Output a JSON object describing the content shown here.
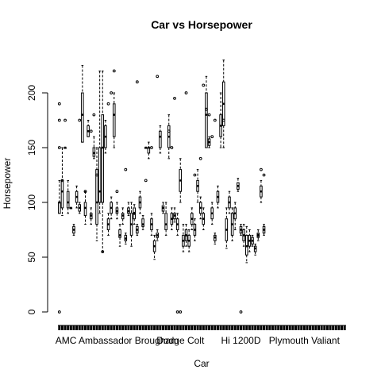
{
  "chart_data": {
    "type": "boxplot",
    "title": "Car vs Horsepower",
    "xlabel": "Car",
    "ylabel": "Horsepower",
    "ylim": [
      -10,
      240
    ],
    "y_ticks": [
      0,
      50,
      100,
      150,
      200
    ],
    "x_tick_labels": [
      "AMC Ambassador Brougham",
      "Dodge Colt",
      "Hi 1200D",
      "Plymouth Valiant"
    ],
    "x_tick_label_positions": [
      21,
      43,
      64,
      86
    ],
    "n_categories": 100,
    "colors": {
      "ink": "#000000",
      "background": "#ffffff"
    },
    "grid": false,
    "boxes": [
      {
        "i": 1,
        "v": [
          90,
          90,
          100,
          100,
          120
        ]
      },
      {
        "i": 2,
        "v": [
          88,
          95,
          110,
          120,
          150
        ]
      },
      {
        "i": 3,
        "v": [
          150,
          150,
          150,
          150,
          150
        ]
      },
      {
        "i": 4,
        "v": [
          90,
          95,
          100,
          110,
          120
        ]
      },
      {
        "i": 5,
        "v": [
          95,
          95,
          95,
          95,
          95
        ]
      },
      {
        "i": 6,
        "v": [
          70,
          72,
          75,
          78,
          80
        ]
      },
      {
        "i": 7,
        "v": [
          95,
          100,
          105,
          110,
          115
        ]
      },
      {
        "i": 8,
        "v": [
          90,
          92,
          95,
          98,
          100
        ]
      },
      {
        "i": 9,
        "v": [
          155,
          155,
          180,
          200,
          225
        ]
      },
      {
        "i": 10,
        "v": [
          80,
          88,
          95,
          100,
          110
        ]
      },
      {
        "i": 11,
        "v": [
          160,
          160,
          165,
          170,
          175
        ]
      },
      {
        "i": 12,
        "v": [
          80,
          85,
          88,
          90,
          95
        ]
      },
      {
        "i": 13,
        "v": [
          140,
          142,
          145,
          150,
          160
        ]
      },
      {
        "i": 14,
        "v": [
          65,
          80,
          100,
          130,
          150
        ]
      },
      {
        "i": 15,
        "v": [
          90,
          100,
          110,
          150,
          220
        ]
      },
      {
        "i": 16,
        "v": [
          55,
          100,
          150,
          180,
          220
        ]
      },
      {
        "i": 17,
        "v": [
          145,
          150,
          160,
          170,
          175
        ]
      },
      {
        "i": 18,
        "v": [
          70,
          75,
          80,
          85,
          90
        ]
      },
      {
        "i": 19,
        "v": [
          85,
          90,
          95,
          100,
          105
        ]
      },
      {
        "i": 20,
        "v": [
          150,
          160,
          180,
          190,
          200
        ]
      },
      {
        "i": 21,
        "v": [
          85,
          90,
          92,
          95,
          100
        ]
      },
      {
        "i": 22,
        "v": [
          60,
          68,
          70,
          75,
          80
        ]
      },
      {
        "i": 23,
        "v": [
          80,
          85,
          88,
          90,
          95
        ]
      },
      {
        "i": 24,
        "v": [
          62,
          65,
          67,
          70,
          72
        ]
      },
      {
        "i": 25,
        "v": [
          88,
          90,
          92,
          95,
          100
        ]
      },
      {
        "i": 26,
        "v": [
          60,
          70,
          80,
          90,
          100
        ]
      },
      {
        "i": 27,
        "v": [
          80,
          85,
          90,
          95,
          98
        ]
      },
      {
        "i": 28,
        "v": [
          70,
          72,
          75,
          78,
          80
        ]
      },
      {
        "i": 29,
        "v": [
          90,
          95,
          100,
          105,
          110
        ]
      },
      {
        "i": 30,
        "v": [
          75,
          78,
          80,
          85,
          88
        ]
      },
      {
        "i": 31,
        "v": [
          150,
          150,
          150,
          150,
          150
        ]
      },
      {
        "i": 32,
        "v": [
          140,
          145,
          150,
          150,
          155
        ]
      },
      {
        "i": 33,
        "v": [
          70,
          75,
          80,
          85,
          90
        ]
      },
      {
        "i": 34,
        "v": [
          48,
          55,
          60,
          65,
          70
        ]
      },
      {
        "i": 35,
        "v": [
          65,
          68,
          70,
          72,
          75
        ]
      },
      {
        "i": 36,
        "v": [
          145,
          150,
          160,
          165,
          170
        ]
      },
      {
        "i": 37,
        "v": [
          90,
          92,
          95,
          97,
          100
        ]
      },
      {
        "i": 38,
        "v": [
          70,
          75,
          80,
          90,
          100
        ]
      },
      {
        "i": 39,
        "v": [
          140,
          150,
          160,
          170,
          180
        ]
      },
      {
        "i": 40,
        "v": [
          75,
          80,
          85,
          90,
          95
        ]
      },
      {
        "i": 41,
        "v": [
          82,
          85,
          88,
          90,
          95
        ]
      },
      {
        "i": 42,
        "v": [
          70,
          75,
          80,
          85,
          90
        ]
      },
      {
        "i": 43,
        "v": [
          100,
          110,
          120,
          130,
          140
        ]
      },
      {
        "i": 44,
        "v": [
          55,
          60,
          65,
          70,
          80
        ]
      },
      {
        "i": 45,
        "v": [
          60,
          65,
          70,
          75,
          80
        ]
      },
      {
        "i": 46,
        "v": [
          55,
          60,
          65,
          70,
          75
        ]
      },
      {
        "i": 47,
        "v": [
          75,
          80,
          85,
          90,
          95
        ]
      },
      {
        "i": 48,
        "v": [
          65,
          70,
          75,
          80,
          85
        ]
      },
      {
        "i": 49,
        "v": [
          100,
          110,
          115,
          120,
          130
        ]
      },
      {
        "i": 50,
        "v": [
          85,
          90,
          95,
          100,
          105
        ]
      },
      {
        "i": 51,
        "v": [
          75,
          80,
          85,
          90,
          95
        ]
      },
      {
        "i": 52,
        "v": [
          150,
          150,
          180,
          200,
          215
        ]
      },
      {
        "i": 53,
        "v": [
          150,
          152,
          155,
          158,
          160
        ]
      },
      {
        "i": 54,
        "v": [
          80,
          85,
          90,
          95,
          100
        ]
      },
      {
        "i": 55,
        "v": [
          62,
          65,
          68,
          70,
          72
        ]
      },
      {
        "i": 56,
        "v": [
          95,
          100,
          105,
          110,
          115
        ]
      },
      {
        "i": 57,
        "v": [
          150,
          160,
          170,
          180,
          200
        ]
      },
      {
        "i": 58,
        "v": [
          150,
          170,
          190,
          210,
          230
        ]
      },
      {
        "i": 59,
        "v": [
          58,
          65,
          75,
          85,
          95
        ]
      },
      {
        "i": 60,
        "v": [
          90,
          95,
          100,
          105,
          110
        ]
      },
      {
        "i": 61,
        "v": [
          65,
          70,
          80,
          90,
          95
        ]
      },
      {
        "i": 62,
        "v": [
          75,
          85,
          90,
          95,
          100
        ]
      },
      {
        "i": 63,
        "v": [
          110,
          112,
          115,
          118,
          122
        ]
      },
      {
        "i": 64,
        "v": [
          70,
          72,
          75,
          78,
          80
        ]
      },
      {
        "i": 65,
        "v": [
          60,
          65,
          70,
          75,
          80
        ]
      },
      {
        "i": 66,
        "v": [
          45,
          52,
          60,
          70,
          78
        ]
      },
      {
        "i": 67,
        "v": [
          55,
          60,
          65,
          70,
          75
        ]
      },
      {
        "i": 68,
        "v": [
          60,
          62,
          65,
          68,
          70
        ]
      },
      {
        "i": 69,
        "v": [
          52,
          55,
          58,
          60,
          62
        ]
      },
      {
        "i": 70,
        "v": [
          65,
          68,
          70,
          72,
          75
        ]
      },
      {
        "i": 71,
        "v": [
          100,
          105,
          110,
          115,
          120
        ]
      },
      {
        "i": 72,
        "v": [
          70,
          72,
          75,
          78,
          80
        ]
      }
    ],
    "outliers": [
      {
        "i": 1,
        "y": 190
      },
      {
        "i": 1,
        "y": 175
      },
      {
        "i": 1,
        "y": 150
      },
      {
        "i": 1,
        "y": 0
      },
      {
        "i": 2,
        "y": 120
      },
      {
        "i": 3,
        "y": 175
      },
      {
        "i": 8,
        "y": 175
      },
      {
        "i": 10,
        "y": 110
      },
      {
        "i": 12,
        "y": 165
      },
      {
        "i": 13,
        "y": 180
      },
      {
        "i": 14,
        "y": 125
      },
      {
        "i": 16,
        "y": 55
      },
      {
        "i": 18,
        "y": 190
      },
      {
        "i": 19,
        "y": 200
      },
      {
        "i": 20,
        "y": 220
      },
      {
        "i": 21,
        "y": 110
      },
      {
        "i": 24,
        "y": 130
      },
      {
        "i": 27,
        "y": 90
      },
      {
        "i": 28,
        "y": 210
      },
      {
        "i": 31,
        "y": 120
      },
      {
        "i": 33,
        "y": 150
      },
      {
        "i": 35,
        "y": 215
      },
      {
        "i": 39,
        "y": 165
      },
      {
        "i": 40,
        "y": 150
      },
      {
        "i": 41,
        "y": 195
      },
      {
        "i": 42,
        "y": 0
      },
      {
        "i": 43,
        "y": 0
      },
      {
        "i": 45,
        "y": 200
      },
      {
        "i": 48,
        "y": 125
      },
      {
        "i": 50,
        "y": 140
      },
      {
        "i": 51,
        "y": 207
      },
      {
        "i": 52,
        "y": 185
      },
      {
        "i": 53,
        "y": 180
      },
      {
        "i": 54,
        "y": 160
      },
      {
        "i": 55,
        "y": 175
      },
      {
        "i": 58,
        "y": 175
      },
      {
        "i": 64,
        "y": 0
      },
      {
        "i": 70,
        "y": 70
      },
      {
        "i": 71,
        "y": 130
      },
      {
        "i": 72,
        "y": 125
      }
    ]
  }
}
